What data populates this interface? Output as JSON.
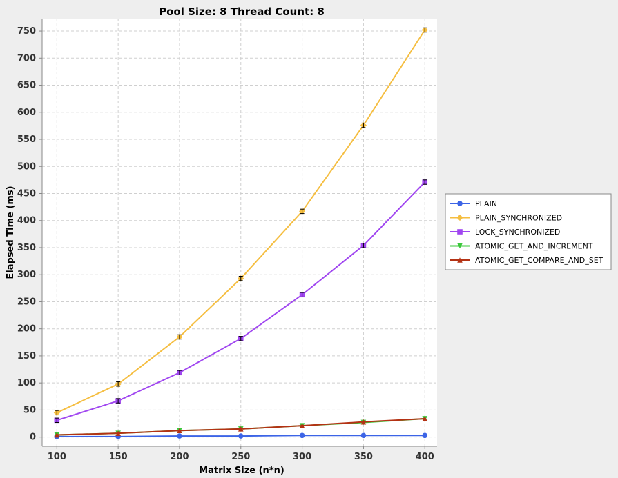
{
  "chart_data": {
    "type": "line",
    "title": "Pool Size: 8 Thread Count: 8",
    "xlabel": "Matrix Size (n*n)",
    "ylabel": "Elapsed Time (ms)",
    "x": [
      100,
      150,
      200,
      250,
      300,
      350,
      400
    ],
    "xlim": [
      88,
      410
    ],
    "ylim": [
      -17,
      773
    ],
    "xticks": [
      "100",
      "150",
      "200",
      "250",
      "300",
      "350",
      "400"
    ],
    "yticks": [
      "0",
      "50",
      "100",
      "150",
      "200",
      "250",
      "300",
      "350",
      "400",
      "450",
      "500",
      "550",
      "600",
      "650",
      "700",
      "750"
    ],
    "grid": true,
    "legend_position": "right",
    "series": [
      {
        "name": "PLAIN",
        "color": "#3c64e6",
        "marker": "circle",
        "values": [
          1,
          1,
          2,
          2,
          3,
          3,
          3
        ]
      },
      {
        "name": "PLAIN_SYNCHRONIZED",
        "color": "#f5be41",
        "marker": "diamond",
        "values": [
          45,
          98,
          185,
          293,
          417,
          576,
          752
        ]
      },
      {
        "name": "LOCK_SYNCHRONIZED",
        "color": "#a046f0",
        "marker": "square",
        "values": [
          31,
          67,
          119,
          182,
          263,
          354,
          471
        ]
      },
      {
        "name": "ATOMIC_GET_AND_INCREMENT",
        "color": "#3cc83c",
        "marker": "triangle-down",
        "values": [
          4,
          7,
          12,
          15,
          21,
          27,
          34
        ]
      },
      {
        "name": "ATOMIC_GET_COMPARE_AND_SET",
        "color": "#b43214",
        "marker": "triangle-up",
        "values": [
          4,
          7,
          12,
          15,
          21,
          28,
          34
        ]
      }
    ]
  }
}
